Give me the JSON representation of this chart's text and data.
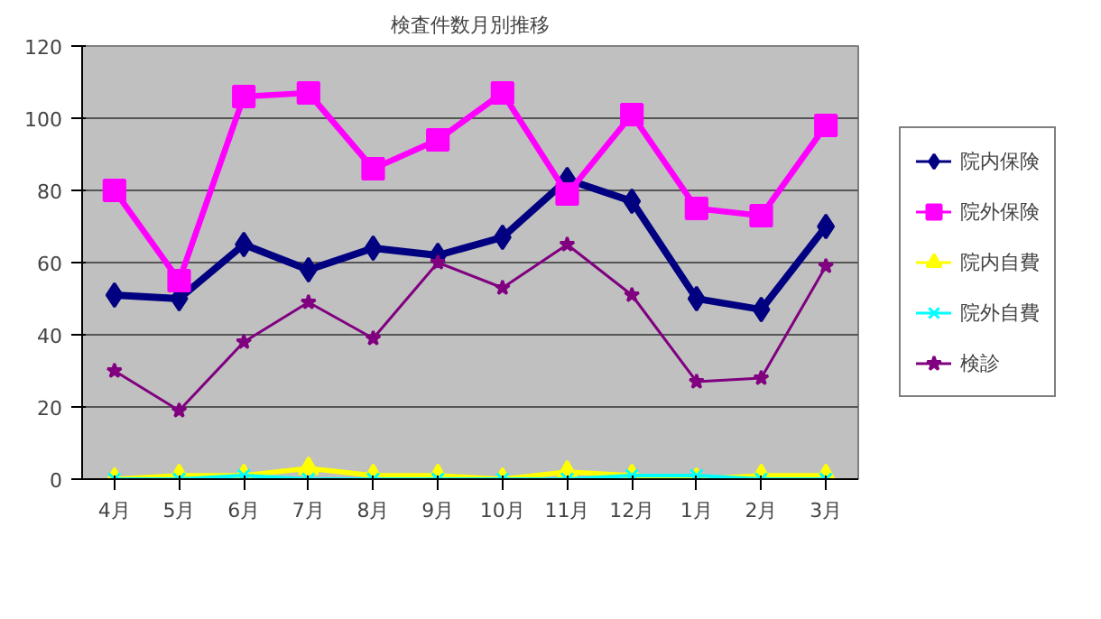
{
  "chart_data": {
    "type": "line",
    "title": "検査件数月別推移",
    "categories": [
      "4月",
      "5月",
      "6月",
      "7月",
      "8月",
      "9月",
      "10月",
      "11月",
      "12月",
      "1月",
      "2月",
      "3月"
    ],
    "series": [
      {
        "name": "院内保険",
        "color": "#000080",
        "marker": "diamond",
        "values": [
          51,
          50,
          65,
          58,
          64,
          62,
          67,
          83,
          77,
          50,
          47,
          70
        ]
      },
      {
        "name": "院外保険",
        "color": "#ff00ff",
        "marker": "square",
        "values": [
          80,
          55,
          106,
          107,
          86,
          94,
          107,
          79,
          101,
          75,
          73,
          98
        ]
      },
      {
        "name": "院内自費",
        "color": "#ffff00",
        "marker": "triangle",
        "values": [
          0,
          1,
          1,
          3,
          1,
          1,
          0,
          2,
          1,
          0,
          1,
          1
        ]
      },
      {
        "name": "院外自費",
        "color": "#00ffff",
        "marker": "cross",
        "values": [
          0,
          0,
          1,
          0,
          0,
          0,
          0,
          0,
          1,
          1,
          0,
          0
        ]
      },
      {
        "name": "検診",
        "color": "#800080",
        "marker": "star",
        "values": [
          30,
          19,
          38,
          49,
          39,
          60,
          53,
          65,
          51,
          27,
          28,
          59
        ]
      }
    ],
    "ylim": [
      0,
      120
    ],
    "yticks": [
      0,
      20,
      40,
      60,
      80,
      100,
      120
    ],
    "grid": "y",
    "legend": "right"
  }
}
